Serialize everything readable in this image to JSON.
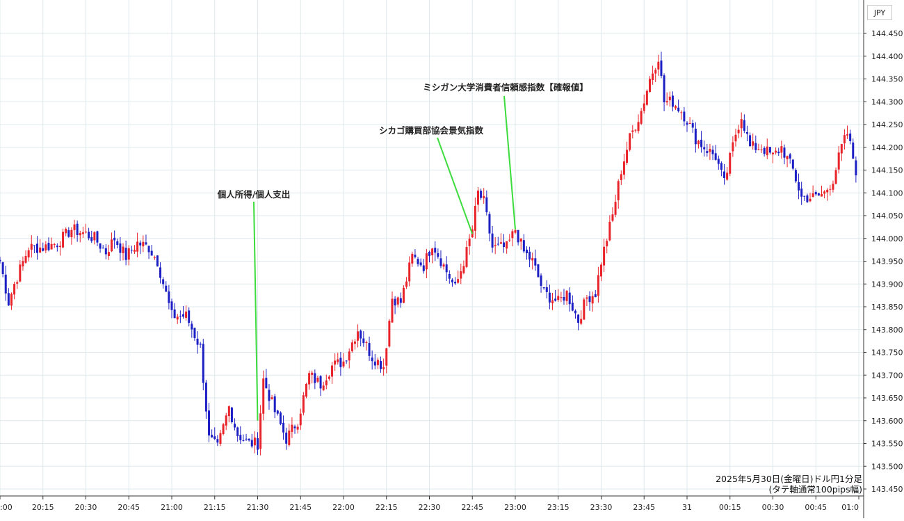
{
  "currency_label": "JPY",
  "caption": {
    "line1": "2025年5月30日(金曜日)ドル円1分足",
    "line2": "(タテ軸通常100pips幅)"
  },
  "colors": {
    "up": "#e8232a",
    "down": "#1c1fc4",
    "annotation_line": "#3bdc3b",
    "grid": "#dfe8ec"
  },
  "chart_data": {
    "type": "candlestick",
    "y_ticks": [
      "143.450",
      "143.500",
      "143.550",
      "143.600",
      "143.650",
      "143.700",
      "143.750",
      "143.800",
      "143.850",
      "143.900",
      "143.950",
      "144.000",
      "144.050",
      "144.100",
      "144.150",
      "144.200",
      "144.250",
      "144.300",
      "144.350",
      "144.400",
      "144.450"
    ],
    "ylim": [
      143.44,
      144.47
    ],
    "x_ticks": [
      ":00",
      "20:15",
      "20:30",
      "20:45",
      "21:00",
      "21:15",
      "21:30",
      "21:45",
      "22:00",
      "22:15",
      "22:30",
      "22:45",
      "23:00",
      "23:15",
      "23:30",
      "23:45",
      "31",
      "00:15",
      "00:30",
      "00:45",
      "01:0"
    ],
    "x_range_minutes": [
      "19:59",
      "01:00"
    ],
    "grid": true,
    "annotations": [
      {
        "label": "個人所得/個人支出",
        "time": "21:30",
        "price": 143.6
      },
      {
        "label": "シカゴ購買部協会景気指数",
        "time": "22:45",
        "price": 144.01
      },
      {
        "label": "ミシガン大学消費者信頼感指数【確報値】",
        "time": "23:00",
        "price": 144.02
      }
    ],
    "path_points": [
      [
        "20:00",
        143.95
      ],
      [
        "20:03",
        143.86
      ],
      [
        "20:05",
        143.9
      ],
      [
        "20:10",
        143.98
      ],
      [
        "20:15",
        143.98
      ],
      [
        "20:20",
        143.99
      ],
      [
        "20:25",
        144.02
      ],
      [
        "20:30",
        144.01
      ],
      [
        "20:33",
        144.0
      ],
      [
        "20:37",
        143.97
      ],
      [
        "20:40",
        144.0
      ],
      [
        "20:44",
        143.96
      ],
      [
        "20:48",
        143.99
      ],
      [
        "20:52",
        143.98
      ],
      [
        "20:55",
        143.95
      ],
      [
        "21:00",
        143.83
      ],
      [
        "21:05",
        143.83
      ],
      [
        "21:10",
        143.76
      ],
      [
        "21:13",
        143.56
      ],
      [
        "21:16",
        143.54
      ],
      [
        "21:20",
        143.63
      ],
      [
        "21:23",
        143.57
      ],
      [
        "21:27",
        143.55
      ],
      [
        "21:30",
        143.55
      ],
      [
        "21:32",
        143.69
      ],
      [
        "21:36",
        143.62
      ],
      [
        "21:40",
        143.56
      ],
      [
        "21:44",
        143.6
      ],
      [
        "21:48",
        143.7
      ],
      [
        "21:52",
        143.68
      ],
      [
        "21:56",
        143.72
      ],
      [
        "22:00",
        143.73
      ],
      [
        "22:05",
        143.8
      ],
      [
        "22:10",
        143.74
      ],
      [
        "22:14",
        143.72
      ],
      [
        "22:17",
        143.87
      ],
      [
        "22:20",
        143.86
      ],
      [
        "22:24",
        143.96
      ],
      [
        "22:28",
        143.94
      ],
      [
        "22:31",
        143.99
      ],
      [
        "22:35",
        143.94
      ],
      [
        "22:39",
        143.89
      ],
      [
        "22:43",
        143.97
      ],
      [
        "22:45",
        144.02
      ],
      [
        "22:47",
        144.1
      ],
      [
        "22:49",
        144.08
      ],
      [
        "22:52",
        143.98
      ],
      [
        "22:57",
        143.98
      ],
      [
        "23:00",
        144.02
      ],
      [
        "23:03",
        143.97
      ],
      [
        "23:06",
        143.95
      ],
      [
        "23:10",
        143.88
      ],
      [
        "23:15",
        143.86
      ],
      [
        "23:18",
        143.88
      ],
      [
        "23:22",
        143.82
      ],
      [
        "23:25",
        143.87
      ],
      [
        "23:28",
        143.88
      ],
      [
        "23:30",
        143.95
      ],
      [
        "23:34",
        144.05
      ],
      [
        "23:37",
        144.15
      ],
      [
        "23:40",
        144.22
      ],
      [
        "23:44",
        144.28
      ],
      [
        "23:47",
        144.35
      ],
      [
        "23:50",
        144.4
      ],
      [
        "23:52",
        144.3
      ],
      [
        "23:55",
        144.3
      ],
      [
        "23:58",
        144.28
      ],
      [
        "00:00",
        144.26
      ],
      [
        "00:03",
        144.22
      ],
      [
        "00:06",
        144.2
      ],
      [
        "00:10",
        144.18
      ],
      [
        "00:13",
        144.12
      ],
      [
        "00:17",
        144.23
      ],
      [
        "00:19",
        144.27
      ],
      [
        "00:22",
        144.2
      ],
      [
        "00:26",
        144.2
      ],
      [
        "00:30",
        144.18
      ],
      [
        "00:33",
        144.2
      ],
      [
        "00:37",
        144.15
      ],
      [
        "00:40",
        144.09
      ],
      [
        "00:45",
        144.09
      ],
      [
        "00:48",
        144.1
      ],
      [
        "00:51",
        144.13
      ],
      [
        "00:54",
        144.2
      ],
      [
        "00:56",
        144.23
      ],
      [
        "00:59",
        144.15
      ]
    ]
  }
}
